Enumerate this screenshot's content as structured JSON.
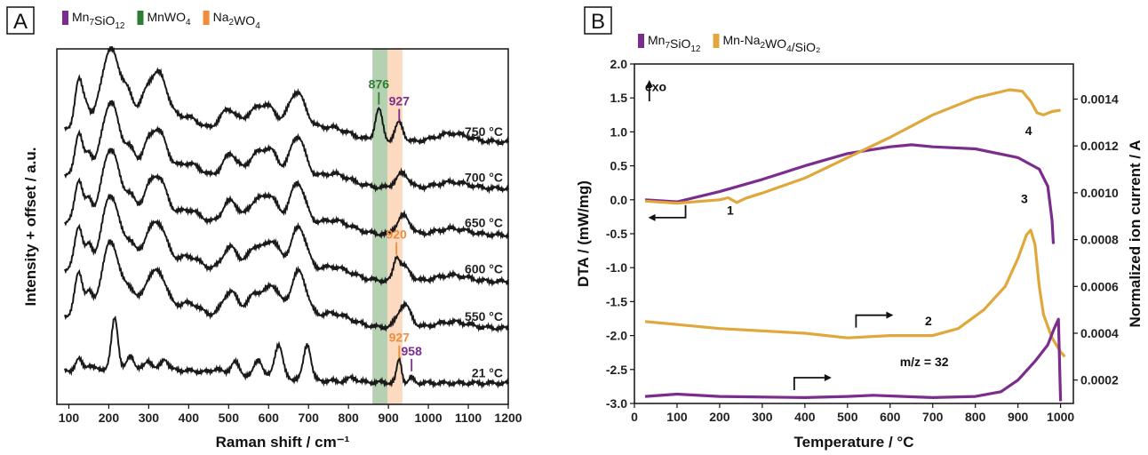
{
  "colors": {
    "black": "#1a1a1a",
    "purple": "#7b2d8e",
    "green": "#2e7d32",
    "orange": "#f08c3c",
    "green_band": "#a9c9a4",
    "orange_band": "#fcd3b4",
    "gold": "#e0a83c"
  },
  "chart_data": [
    {
      "panel": "A",
      "type": "line",
      "panel_label": "A",
      "legend": [
        {
          "base": "Mn",
          "sub1": "7",
          "mid": "SiO",
          "sub2": "12",
          "tail": "",
          "color": "#7b2d8e"
        },
        {
          "base": "MnWO",
          "sub1": "4",
          "mid": "",
          "sub2": "",
          "tail": "",
          "color": "#2e7d32"
        },
        {
          "base": "Na",
          "sub1": "2",
          "mid": "WO",
          "sub2": "4",
          "tail": "",
          "color": "#f08c3c"
        }
      ],
      "xlabel": "Raman shift / cm⁻¹",
      "ylabel": "Intensity + offset / a.u.",
      "xlim": [
        70,
        1200
      ],
      "xticks": [
        100,
        200,
        300,
        400,
        500,
        600,
        700,
        800,
        900,
        1000,
        1100,
        1200
      ],
      "bands": [
        {
          "from": 860,
          "to": 898,
          "color": "#a9c9a4"
        },
        {
          "from": 898,
          "to": 935,
          "color": "#fcd3b4"
        }
      ],
      "series": [
        {
          "name": "750 °C",
          "baseline": 6.2,
          "peaks": [
            [
              125,
              1.15,
              10
            ],
            [
              145,
              0.4,
              8
            ],
            [
              205,
              1.85,
              24
            ],
            [
              250,
              0.55,
              14
            ],
            [
              290,
              0.5,
              16
            ],
            [
              325,
              1.25,
              22
            ],
            [
              395,
              0.3,
              30
            ],
            [
              500,
              0.55,
              22
            ],
            [
              560,
              0.45,
              20
            ],
            [
              600,
              0.65,
              22
            ],
            [
              670,
              1.0,
              22
            ],
            [
              750,
              0.3,
              50
            ],
            [
              876,
              0.75,
              9
            ],
            [
              927,
              0.45,
              10
            ],
            [
              1060,
              0.2,
              40
            ]
          ]
        },
        {
          "name": "700 °C",
          "baseline": 5.1,
          "peaks": [
            [
              125,
              1.0,
              10
            ],
            [
              150,
              0.45,
              8
            ],
            [
              205,
              1.7,
              22
            ],
            [
              255,
              0.5,
              14
            ],
            [
              295,
              0.45,
              14
            ],
            [
              325,
              1.0,
              20
            ],
            [
              400,
              0.3,
              30
            ],
            [
              505,
              0.6,
              20
            ],
            [
              565,
              0.55,
              18
            ],
            [
              605,
              0.75,
              20
            ],
            [
              672,
              1.1,
              20
            ],
            [
              760,
              0.3,
              45
            ],
            [
              935,
              0.35,
              16
            ],
            [
              1060,
              0.15,
              40
            ]
          ]
        },
        {
          "name": "650 °C",
          "baseline": 4.0,
          "peaks": [
            [
              125,
              1.0,
              10
            ],
            [
              150,
              0.45,
              8
            ],
            [
              205,
              1.7,
              22
            ],
            [
              255,
              0.5,
              14
            ],
            [
              295,
              0.45,
              14
            ],
            [
              325,
              1.0,
              20
            ],
            [
              400,
              0.3,
              30
            ],
            [
              505,
              0.6,
              20
            ],
            [
              565,
              0.55,
              18
            ],
            [
              605,
              0.75,
              20
            ],
            [
              672,
              1.1,
              20
            ],
            [
              760,
              0.3,
              45
            ],
            [
              938,
              0.45,
              16
            ],
            [
              1060,
              0.15,
              40
            ]
          ]
        },
        {
          "name": "600 °C",
          "baseline": 2.9,
          "peaks": [
            [
              125,
              1.0,
              10
            ],
            [
              150,
              0.45,
              8
            ],
            [
              205,
              1.7,
              22
            ],
            [
              255,
              0.5,
              14
            ],
            [
              295,
              0.45,
              14
            ],
            [
              325,
              1.0,
              20
            ],
            [
              400,
              0.3,
              30
            ],
            [
              505,
              0.6,
              20
            ],
            [
              565,
              0.6,
              18
            ],
            [
              610,
              0.8,
              20
            ],
            [
              675,
              1.15,
              20
            ],
            [
              760,
              0.3,
              45
            ],
            [
              920,
              0.4,
              7
            ],
            [
              938,
              0.35,
              16
            ],
            [
              1060,
              0.15,
              40
            ]
          ]
        },
        {
          "name": "550 °C",
          "baseline": 1.8,
          "peaks": [
            [
              125,
              1.0,
              10
            ],
            [
              150,
              0.45,
              8
            ],
            [
              205,
              1.7,
              22
            ],
            [
              255,
              0.5,
              14
            ],
            [
              295,
              0.45,
              14
            ],
            [
              325,
              0.95,
              20
            ],
            [
              400,
              0.3,
              30
            ],
            [
              505,
              0.65,
              20
            ],
            [
              565,
              0.6,
              18
            ],
            [
              610,
              0.85,
              20
            ],
            [
              675,
              1.2,
              20
            ],
            [
              760,
              0.3,
              45
            ],
            [
              940,
              0.55,
              16
            ],
            [
              1060,
              0.15,
              40
            ]
          ]
        },
        {
          "name": "21 °C",
          "baseline": 0.5,
          "peaks": [
            [
              125,
              0.25,
              8
            ],
            [
              150,
              0.1,
              8
            ],
            [
              215,
              1.2,
              8
            ],
            [
              255,
              0.3,
              8
            ],
            [
              300,
              0.2,
              8
            ],
            [
              340,
              0.25,
              8
            ],
            [
              470,
              0.1,
              10
            ],
            [
              515,
              0.3,
              10
            ],
            [
              575,
              0.4,
              10
            ],
            [
              625,
              0.8,
              10
            ],
            [
              697,
              0.85,
              9
            ],
            [
              810,
              0.1,
              10
            ],
            [
              927,
              0.55,
              6
            ],
            [
              958,
              0.12,
              6
            ]
          ]
        }
      ],
      "ylim": [
        0,
        8.4
      ],
      "annotations": [
        {
          "text": "876",
          "x": 876,
          "color": "#2e7d32",
          "series": 0
        },
        {
          "text": "927",
          "x": 927,
          "color": "#7b2d8e",
          "series": 0
        },
        {
          "text": "920",
          "x": 920,
          "color": "#f08c3c",
          "series": 3
        },
        {
          "text": "927",
          "x": 927,
          "color": "#f08c3c",
          "series": 5
        },
        {
          "text": "958",
          "x": 958,
          "color": "#7b2d8e",
          "series": 5
        }
      ]
    },
    {
      "panel": "B",
      "type": "line",
      "panel_label": "B",
      "legend": [
        {
          "base": "Mn",
          "sub1": "7",
          "mid": "SiO",
          "sub2": "12",
          "tail": "",
          "color": "#7b2d8e"
        },
        {
          "base": "Mn-Na",
          "sub1": "2",
          "mid": "WO",
          "sub2": "4",
          "tail": "/SiO₂",
          "color": "#e0a83c"
        }
      ],
      "xlabel": "Temperature / °C",
      "ylabel": "DTA / (mW/mg)",
      "y2label": "Normalized ion current / A",
      "xlim": [
        0,
        1030
      ],
      "xticks": [
        0,
        100,
        200,
        300,
        400,
        500,
        600,
        700,
        800,
        900,
        1000
      ],
      "ylim": [
        -3.0,
        2.0
      ],
      "yticks": [
        "2.0",
        "1.5",
        "1.0",
        "0.5",
        "0.0",
        "-0.5",
        "-1.0",
        "-1.5",
        "-2.0",
        "-2.5",
        "-3.0"
      ],
      "y2lim": [
        0.0001,
        0.00155
      ],
      "y2ticks": [
        "0.0002",
        "0.0004",
        "0.0006",
        "0.0008",
        "0.0010",
        "0.0012",
        "0.0014"
      ],
      "series": [
        {
          "name": "Mn₇SiO₁₂ DTA",
          "axis": "left",
          "color": "#7b2d8e",
          "points": [
            [
              25,
              0.0
            ],
            [
              100,
              -0.03
            ],
            [
              200,
              0.12
            ],
            [
              300,
              0.3
            ],
            [
              400,
              0.5
            ],
            [
              500,
              0.68
            ],
            [
              600,
              0.78
            ],
            [
              650,
              0.81
            ],
            [
              700,
              0.78
            ],
            [
              800,
              0.75
            ],
            [
              900,
              0.62
            ],
            [
              950,
              0.45
            ],
            [
              970,
              0.2
            ],
            [
              980,
              -0.3
            ],
            [
              983,
              -0.65
            ]
          ]
        },
        {
          "name": "Mn-Na₂WO₄/SiO₂ DTA",
          "axis": "left",
          "color": "#e0a83c",
          "points": [
            [
              25,
              -0.02
            ],
            [
              100,
              -0.05
            ],
            [
              200,
              0.0
            ],
            [
              220,
              0.03
            ],
            [
              240,
              -0.04
            ],
            [
              260,
              0.02
            ],
            [
              300,
              0.1
            ],
            [
              400,
              0.32
            ],
            [
              500,
              0.62
            ],
            [
              600,
              0.92
            ],
            [
              700,
              1.25
            ],
            [
              800,
              1.5
            ],
            [
              880,
              1.62
            ],
            [
              910,
              1.6
            ],
            [
              930,
              1.45
            ],
            [
              945,
              1.28
            ],
            [
              960,
              1.25
            ],
            [
              980,
              1.3
            ],
            [
              1000,
              1.32
            ]
          ]
        },
        {
          "name": "Mn-Na₂WO₄/SiO₂ m/z 32",
          "axis": "right",
          "color": "#e0a83c",
          "points": [
            [
              25,
              0.00045
            ],
            [
              200,
              0.00042
            ],
            [
              400,
              0.0004
            ],
            [
              500,
              0.00038
            ],
            [
              600,
              0.00039
            ],
            [
              700,
              0.00039
            ],
            [
              760,
              0.00042
            ],
            [
              820,
              0.0005
            ],
            [
              870,
              0.0006
            ],
            [
              900,
              0.00072
            ],
            [
              920,
              0.00082
            ],
            [
              930,
              0.00084
            ],
            [
              940,
              0.00078
            ],
            [
              950,
              0.0006
            ],
            [
              960,
              0.00048
            ],
            [
              980,
              0.00038
            ],
            [
              1000,
              0.00032
            ],
            [
              1010,
              0.0003
            ]
          ]
        },
        {
          "name": "Mn₇SiO₁₂ m/z 32",
          "axis": "right",
          "color": "#7b2d8e",
          "points": [
            [
              25,
              0.00013
            ],
            [
              100,
              0.00014
            ],
            [
              200,
              0.00013
            ],
            [
              400,
              0.000125
            ],
            [
              500,
              0.00013
            ],
            [
              560,
              0.000135
            ],
            [
              700,
              0.000125
            ],
            [
              800,
              0.00013
            ],
            [
              860,
              0.00015
            ],
            [
              900,
              0.0002
            ],
            [
              940,
              0.00028
            ],
            [
              970,
              0.00035
            ],
            [
              985,
              0.00042
            ],
            [
              995,
              0.00046
            ],
            [
              1000,
              0.00011
            ]
          ]
        }
      ],
      "annotations": [
        {
          "text": "1",
          "x": 225,
          "y": -0.22,
          "color": "#111"
        },
        {
          "text": "2",
          "x": 690,
          "y": -1.85,
          "color": "#111"
        },
        {
          "text": "3",
          "x": 915,
          "y": -0.05,
          "color": "#111"
        },
        {
          "text": "4",
          "x": 925,
          "y": 0.95,
          "color": "#111"
        },
        {
          "text": "m/z = 32",
          "x": 680,
          "y": -2.45,
          "color": "#111"
        },
        {
          "text": "exo",
          "x": 50,
          "y": 1.6,
          "color": "#111"
        }
      ]
    }
  ]
}
